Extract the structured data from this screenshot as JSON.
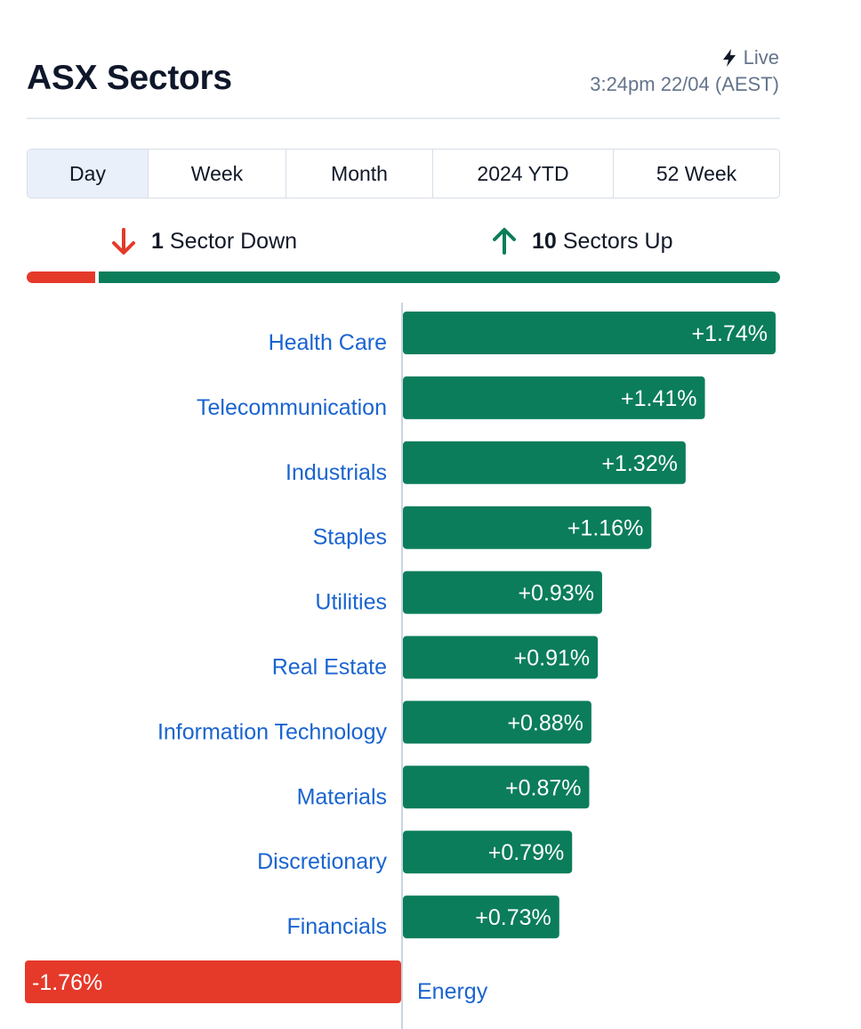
{
  "header": {
    "title": "ASX Sectors",
    "live_label": "Live",
    "timestamp": "3:24pm 22/04 (AEST)"
  },
  "tabs": [
    {
      "label": "Day",
      "active": true
    },
    {
      "label": "Week",
      "active": false
    },
    {
      "label": "Month",
      "active": false
    },
    {
      "label": "2024 YTD",
      "active": false
    },
    {
      "label": "52 Week",
      "active": false
    }
  ],
  "summary": {
    "down_count": "1",
    "down_label": "Sector Down",
    "up_count": "10",
    "up_label": "Sectors Up",
    "down_fraction": 0.0909
  },
  "colors": {
    "up": "#0b7d5b",
    "down": "#e5392a",
    "label": "#1a64d0",
    "tab_active_bg": "#e9f0f9"
  },
  "chart_data": {
    "type": "bar",
    "orientation": "horizontal",
    "categories": [
      "Health Care",
      "Telecommunication",
      "Industrials",
      "Staples",
      "Utilities",
      "Real Estate",
      "Information Technology",
      "Materials",
      "Discretionary",
      "Financials",
      "Energy"
    ],
    "values": [
      1.74,
      1.41,
      1.32,
      1.16,
      0.93,
      0.91,
      0.88,
      0.87,
      0.79,
      0.73,
      -1.76
    ],
    "value_labels": [
      "+1.74%",
      "+1.41%",
      "+1.32%",
      "+1.16%",
      "+0.93%",
      "+0.91%",
      "+0.88%",
      "+0.87%",
      "+0.79%",
      "+0.73%",
      "-1.76%"
    ],
    "unit": "%",
    "xlim": [
      -1.76,
      1.74
    ]
  }
}
